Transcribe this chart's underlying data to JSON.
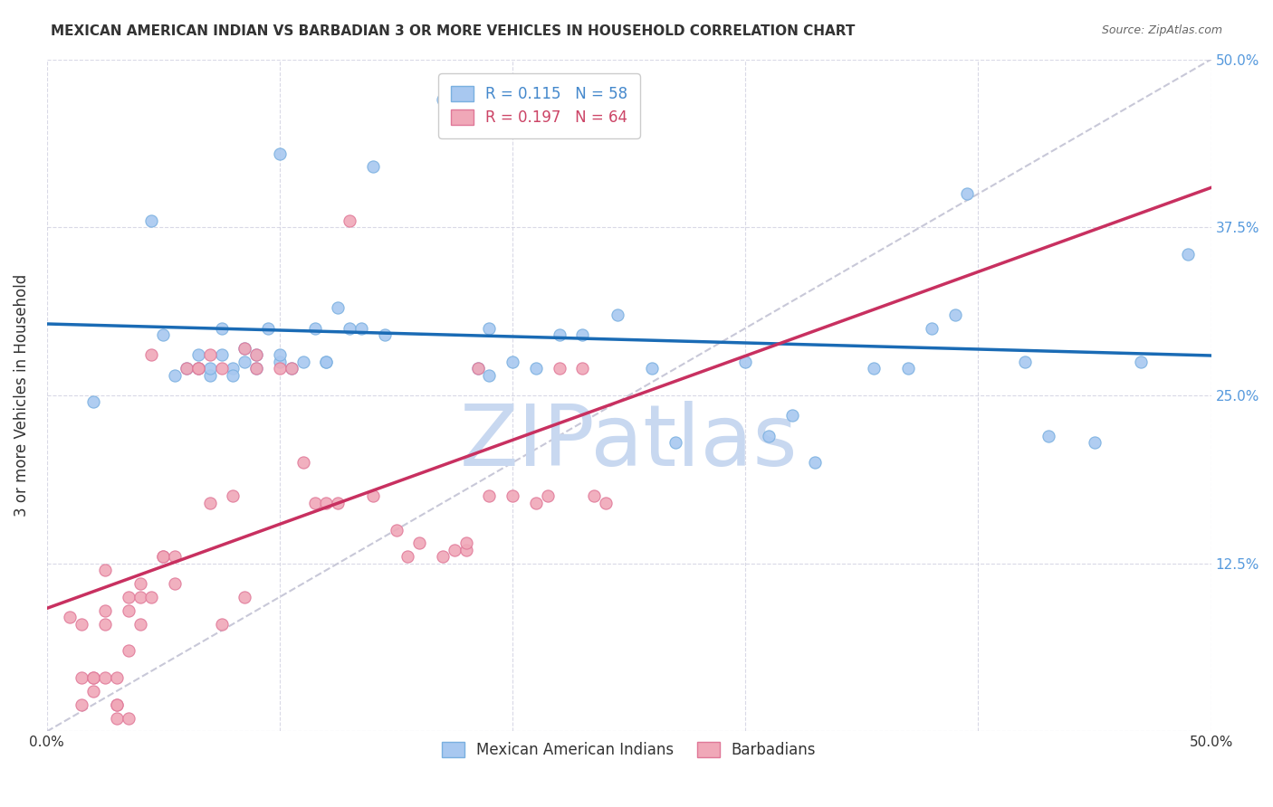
{
  "title": "MEXICAN AMERICAN INDIAN VS BARBADIAN 3 OR MORE VEHICLES IN HOUSEHOLD CORRELATION CHART",
  "source": "Source: ZipAtlas.com",
  "ylabel": "3 or more Vehicles in Household",
  "x_min": 0.0,
  "x_max": 0.5,
  "y_min": 0.0,
  "y_max": 0.5,
  "series1_name": "Mexican American Indians",
  "series1_color": "#a8c8f0",
  "series1_edge_color": "#7ab0e0",
  "series2_name": "Barbadians",
  "series2_color": "#f0a8b8",
  "series2_edge_color": "#e07898",
  "trendline1_color": "#1a6bb5",
  "trendline2_color": "#c83060",
  "diagonal_color": "#c8c8d8",
  "watermark_color": "#c8d8f0",
  "legend1_label": "R = 0.115   N = 58",
  "legend2_label": "R = 0.197   N = 64",
  "legend1_text_color": "#4488cc",
  "legend2_text_color": "#cc4466",
  "series1_x": [
    0.02,
    0.045,
    0.05,
    0.055,
    0.06,
    0.065,
    0.065,
    0.07,
    0.07,
    0.075,
    0.075,
    0.08,
    0.08,
    0.085,
    0.085,
    0.09,
    0.09,
    0.095,
    0.1,
    0.1,
    0.1,
    0.105,
    0.11,
    0.115,
    0.12,
    0.12,
    0.125,
    0.13,
    0.135,
    0.14,
    0.145,
    0.17,
    0.175,
    0.18,
    0.185,
    0.19,
    0.19,
    0.2,
    0.21,
    0.22,
    0.23,
    0.245,
    0.26,
    0.27,
    0.3,
    0.31,
    0.32,
    0.33,
    0.355,
    0.37,
    0.38,
    0.39,
    0.395,
    0.42,
    0.43,
    0.45,
    0.47,
    0.49
  ],
  "series1_y": [
    0.245,
    0.38,
    0.295,
    0.265,
    0.27,
    0.28,
    0.27,
    0.265,
    0.27,
    0.3,
    0.28,
    0.27,
    0.265,
    0.285,
    0.275,
    0.28,
    0.27,
    0.3,
    0.275,
    0.28,
    0.43,
    0.27,
    0.275,
    0.3,
    0.275,
    0.275,
    0.315,
    0.3,
    0.3,
    0.42,
    0.295,
    0.47,
    0.47,
    0.47,
    0.27,
    0.3,
    0.265,
    0.275,
    0.27,
    0.295,
    0.295,
    0.31,
    0.27,
    0.215,
    0.275,
    0.22,
    0.235,
    0.2,
    0.27,
    0.27,
    0.3,
    0.31,
    0.4,
    0.275,
    0.22,
    0.215,
    0.275,
    0.355
  ],
  "series2_x": [
    0.01,
    0.015,
    0.015,
    0.015,
    0.02,
    0.02,
    0.02,
    0.025,
    0.025,
    0.025,
    0.025,
    0.03,
    0.03,
    0.03,
    0.03,
    0.035,
    0.035,
    0.035,
    0.035,
    0.04,
    0.04,
    0.04,
    0.045,
    0.045,
    0.05,
    0.05,
    0.055,
    0.055,
    0.06,
    0.065,
    0.065,
    0.07,
    0.07,
    0.075,
    0.075,
    0.08,
    0.085,
    0.085,
    0.09,
    0.09,
    0.1,
    0.105,
    0.11,
    0.115,
    0.12,
    0.125,
    0.13,
    0.14,
    0.15,
    0.155,
    0.16,
    0.17,
    0.175,
    0.18,
    0.18,
    0.185,
    0.19,
    0.2,
    0.21,
    0.215,
    0.22,
    0.23,
    0.235,
    0.24
  ],
  "series2_y": [
    0.085,
    0.08,
    0.04,
    0.02,
    0.04,
    0.04,
    0.03,
    0.04,
    0.08,
    0.09,
    0.12,
    0.01,
    0.04,
    0.02,
    0.02,
    0.01,
    0.06,
    0.09,
    0.1,
    0.08,
    0.1,
    0.11,
    0.28,
    0.1,
    0.13,
    0.13,
    0.11,
    0.13,
    0.27,
    0.27,
    0.27,
    0.28,
    0.17,
    0.27,
    0.08,
    0.175,
    0.285,
    0.1,
    0.28,
    0.27,
    0.27,
    0.27,
    0.2,
    0.17,
    0.17,
    0.17,
    0.38,
    0.175,
    0.15,
    0.13,
    0.14,
    0.13,
    0.135,
    0.135,
    0.14,
    0.27,
    0.175,
    0.175,
    0.17,
    0.175,
    0.27,
    0.27,
    0.175,
    0.17
  ]
}
